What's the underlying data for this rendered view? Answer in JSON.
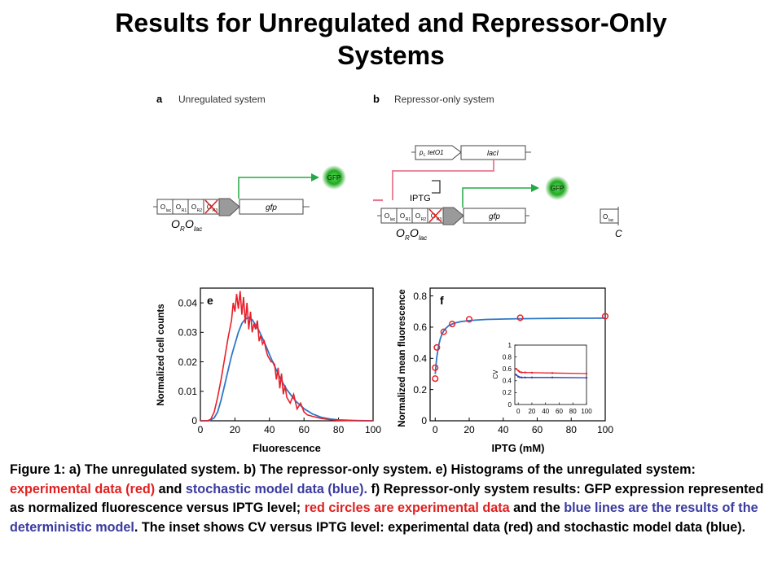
{
  "slide": {
    "title_line1": "Results for Unregulated and Repressor-Only",
    "title_line2": "Systems"
  },
  "diagram_a": {
    "panel_letter": "a",
    "title": "Unregulated system",
    "operators": [
      "O",
      "O",
      "O",
      "O"
    ],
    "operator_subs": [
      "lac",
      "R1",
      "R2",
      "R3"
    ],
    "gene": "gfp",
    "protein": "GFP",
    "promoter_main": "O",
    "promoter_sub1": "R",
    "promoter_main2": "O",
    "promoter_sub2": "lac"
  },
  "diagram_b": {
    "panel_letter": "b",
    "title": "Repressor-only system",
    "repressor_promoter": "p",
    "repressor_promoter_sub": "L",
    "repressor_promoter_rest": "tetO1",
    "repressor_gene": "lacI",
    "inducer": "IPTG",
    "operators": [
      "O",
      "O",
      "O",
      "O"
    ],
    "operator_subs": [
      "lac",
      "R1",
      "R2",
      "R3"
    ],
    "gene": "gfp",
    "protein": "GFP",
    "promoter_main": "O",
    "promoter_sub1": "R",
    "promoter_main2": "O",
    "promoter_sub2": "lac",
    "cut_operator_text": "O",
    "cut_operator_sub": "lac",
    "cut_letter": "C"
  },
  "colors": {
    "experimental": "#e8202a",
    "model": "#2e78c8",
    "arrow_green": "#22aa44",
    "repression_pink": "#e87890",
    "gfp_green": "#33bb33"
  },
  "chart_data": [
    {
      "id": "e",
      "panel_letter": "e",
      "type": "line",
      "xlabel": "Fluorescence",
      "ylabel": "Normalized cell counts",
      "xlim": [
        0,
        100
      ],
      "ylim": [
        0,
        0.045
      ],
      "xticks": [
        0,
        20,
        40,
        60,
        80,
        100
      ],
      "xtick_labels": [
        "0",
        "20",
        "40",
        "60",
        "80",
        "100"
      ],
      "yticks": [
        0,
        0.01,
        0.02,
        0.03,
        0.04
      ],
      "ytick_labels": [
        "0",
        "0.01",
        "0.02",
        "0.03",
        "0.04"
      ],
      "series": [
        {
          "x": [
            0,
            4,
            6,
            8,
            10,
            12,
            14,
            16,
            18,
            19,
            20,
            21,
            22,
            23,
            24,
            25,
            26,
            27,
            28,
            29,
            30,
            31,
            32,
            33,
            34,
            35,
            36,
            37,
            38,
            39,
            40,
            41,
            42,
            43,
            44,
            45,
            46,
            47,
            48,
            49,
            50,
            52,
            54,
            56,
            58,
            60,
            62,
            65,
            70,
            75,
            80,
            90,
            100
          ],
          "y": [
            0,
            0,
            0.0005,
            0.003,
            0.008,
            0.014,
            0.021,
            0.028,
            0.034,
            0.04,
            0.037,
            0.043,
            0.038,
            0.044,
            0.036,
            0.042,
            0.033,
            0.04,
            0.031,
            0.037,
            0.03,
            0.033,
            0.031,
            0.034,
            0.027,
            0.029,
            0.026,
            0.027,
            0.024,
            0.022,
            0.021,
            0.02,
            0.02,
            0.019,
            0.014,
            0.018,
            0.011,
            0.016,
            0.009,
            0.012,
            0.008,
            0.006,
            0.009,
            0.004,
            0.006,
            0.003,
            0.002,
            0.0015,
            0.0008,
            0.0004,
            0.0002,
            0,
            0
          ]
        },
        {
          "x": [
            0,
            5,
            8,
            10,
            12,
            14,
            16,
            18,
            20,
            22,
            24,
            26,
            28,
            30,
            32,
            34,
            36,
            38,
            40,
            42,
            44,
            46,
            48,
            50,
            55,
            60,
            65,
            70,
            75,
            80,
            90,
            100
          ],
          "y": [
            0,
            0,
            0.001,
            0.003,
            0.007,
            0.012,
            0.017,
            0.022,
            0.026,
            0.03,
            0.033,
            0.0345,
            0.035,
            0.0343,
            0.0325,
            0.0305,
            0.028,
            0.0253,
            0.0225,
            0.0198,
            0.0172,
            0.0148,
            0.0126,
            0.0106,
            0.0068,
            0.0041,
            0.0023,
            0.0012,
            0.0006,
            0.0003,
            0.0001,
            0
          ]
        }
      ]
    },
    {
      "id": "f",
      "panel_letter": "f",
      "type": "line",
      "xlabel": "IPTG (mM)",
      "ylabel": "Normalized mean fluorescence",
      "xlim": [
        -3,
        100
      ],
      "ylim": [
        0,
        0.85
      ],
      "xticks": [
        0,
        20,
        40,
        60,
        80,
        100
      ],
      "xtick_labels": [
        "0",
        "20",
        "40",
        "60",
        "80",
        "100"
      ],
      "yticks": [
        0,
        0.2,
        0.4,
        0.6,
        0.8
      ],
      "ytick_labels": [
        "0",
        "0.2",
        "0.4",
        "0.6",
        "0.8"
      ],
      "series": [
        {
          "style": "circles",
          "x": [
            0,
            0,
            1,
            5,
            10,
            20,
            50,
            100
          ],
          "y": [
            0.27,
            0.34,
            0.47,
            0.57,
            0.62,
            0.65,
            0.66,
            0.67
          ]
        },
        {
          "style": "line",
          "x": [
            0,
            0.5,
            1,
            2,
            3,
            4,
            5,
            6,
            8,
            10,
            12,
            15,
            20,
            25,
            30,
            40,
            50,
            60,
            70,
            80,
            90,
            100
          ],
          "y": [
            0.3,
            0.36,
            0.41,
            0.48,
            0.525,
            0.555,
            0.575,
            0.59,
            0.61,
            0.62,
            0.628,
            0.635,
            0.642,
            0.646,
            0.649,
            0.652,
            0.654,
            0.655,
            0.656,
            0.657,
            0.657,
            0.658
          ]
        }
      ],
      "inset": {
        "xlabel": "",
        "ylabel": "CV",
        "xlim": [
          -5,
          100
        ],
        "ylim": [
          0,
          1
        ],
        "xticks": [
          0,
          20,
          40,
          60,
          80,
          100
        ],
        "xtick_labels": [
          "0",
          "20",
          "40",
          "60",
          "80",
          "100"
        ],
        "yticks": [
          0,
          0.2,
          0.4,
          0.6,
          0.8,
          1
        ],
        "ytick_labels": [
          "0",
          "0.2",
          "0.4",
          "0.6",
          "0.8",
          "1"
        ],
        "series": [
          {
            "x": [
              -3,
              0,
              2,
              5,
              10,
              20,
              50,
              100
            ],
            "y": [
              0.6,
              0.57,
              0.55,
              0.54,
              0.54,
              0.535,
              0.53,
              0.52
            ]
          },
          {
            "x": [
              -3,
              0,
              2,
              5,
              10,
              20,
              50,
              100
            ],
            "y": [
              0.5,
              0.47,
              0.46,
              0.455,
              0.455,
              0.455,
              0.455,
              0.45
            ]
          }
        ]
      }
    }
  ],
  "caption": {
    "part1": "Figure 1: a) The unregulated system. b) The repressor-only system. e) Histograms of the unregulated system: ",
    "red1": "experimental data (red)",
    "part2": " and ",
    "blue1": "stochastic model data (blue).",
    "part3": " f) Repressor-only system results: GFP expression represented as normalized fluorescence versus IPTG level; ",
    "red2": "red circles are experimental data",
    "part4": " and the ",
    "blue2": "blue lines are the results of the deterministic model",
    "part5": ". The inset shows CV versus IPTG level: experimental data (red) and stochastic model data (blue)."
  }
}
